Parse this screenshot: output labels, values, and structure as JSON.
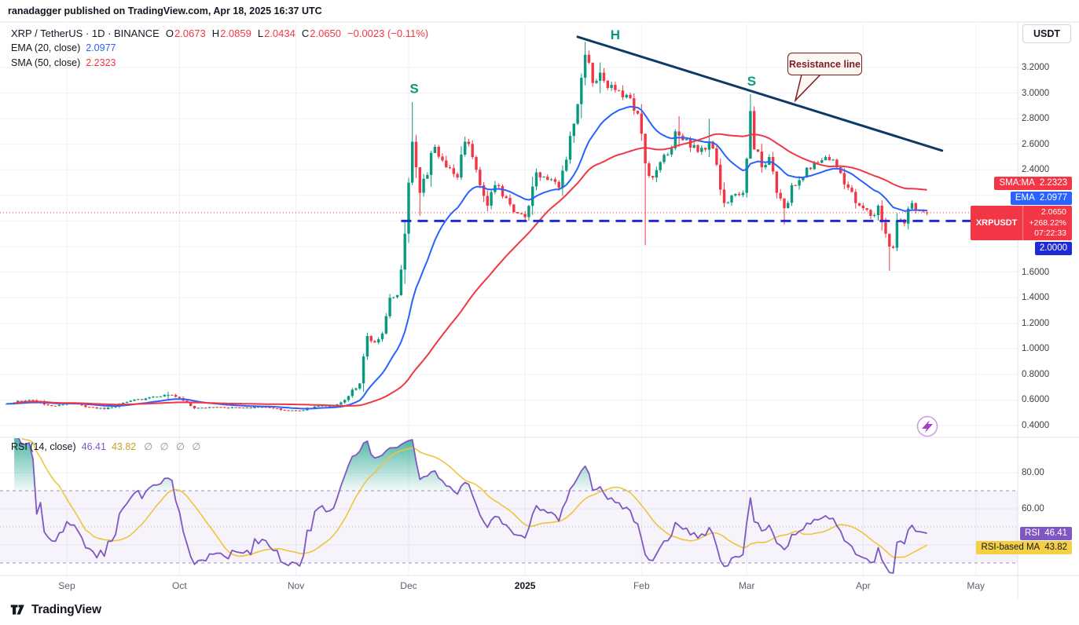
{
  "header": {
    "published": "ranadagger published on TradingView.com, Apr 18, 2025 16:37 UTC"
  },
  "symbol_legend": {
    "title": "XRP / TetherUS · 1D · BINANCE",
    "ohlc": [
      {
        "k": "O",
        "v": "2.0673"
      },
      {
        "k": "H",
        "v": "2.0859"
      },
      {
        "k": "L",
        "v": "2.0434"
      },
      {
        "k": "C",
        "v": "2.0650"
      }
    ],
    "change": "−0.0023 (−0.11%)",
    "ema_label": "EMA (20, close)",
    "ema_value": "2.0977",
    "sma_label": "SMA (50, close)",
    "sma_value": "2.2323"
  },
  "rsi_legend": {
    "label": "RSI (14, close)",
    "rsi_value": "46.41",
    "ma_value": "43.82",
    "empty": "∅ ∅ ∅ ∅"
  },
  "axis": {
    "currency_button": "USDT",
    "price_ticks": [
      3.2,
      3.0,
      2.8,
      2.6,
      2.4,
      1.6,
      1.4,
      1.2,
      1.0,
      0.8,
      0.6,
      0.4
    ],
    "rsi_ticks": [
      80,
      60
    ],
    "months": [
      {
        "label": "Sep",
        "day": 16
      },
      {
        "label": "Oct",
        "day": 46
      },
      {
        "label": "Nov",
        "day": 77
      },
      {
        "label": "Dec",
        "day": 107
      },
      {
        "label": "2025",
        "day": 138,
        "bold": true
      },
      {
        "label": "Feb",
        "day": 169
      },
      {
        "label": "Mar",
        "day": 197
      },
      {
        "label": "Apr",
        "day": 228
      },
      {
        "label": "May",
        "day": 258
      }
    ]
  },
  "badges": {
    "sma": {
      "label": "SMA:MA",
      "value": "2.2323",
      "price": 2.2323
    },
    "ema": {
      "label": "EMA",
      "value": "2.0977",
      "price": 2.0977
    },
    "symbol": {
      "label": "XRPUSDT",
      "price": 2.065,
      "lines": [
        "2.0650",
        "+268.22%",
        "07:22:33"
      ]
    },
    "neckline": {
      "value": "2.0000",
      "price": 2.0
    },
    "rsi": {
      "label": "RSI",
      "value": "46.41",
      "level": 46.41
    },
    "rsi_ma": {
      "label": "RSI-based MA",
      "value": "43.82",
      "level": 43.82
    }
  },
  "footer": {
    "brand": "TradingView"
  },
  "colors": {
    "up": "#089981",
    "down": "#f23645",
    "ema": "#2962ff",
    "sma": "#f23645",
    "rsi": "#7e57c2",
    "rsi_ma": "#f0c43c",
    "neckline": "#1f2bd4",
    "resistance": "#0d3b66",
    "pattern_labels": "#089981",
    "callout": "#7e1a20"
  },
  "chart_data": {
    "type": "candlestick",
    "symbol": "XRP/USDT",
    "exchange": "BINANCE",
    "timeframe": "1D",
    "title": "XRP / TetherUS · 1D · BINANCE",
    "x_axis": {
      "start_date": "2024-08-16",
      "end_date": "2025-04-18",
      "days_shown_after_last": 25
    },
    "y_axis": {
      "visible_range": [
        0.36,
        3.46
      ],
      "tick_step": 0.2,
      "unit": "USDT"
    },
    "close_anchors": [
      [
        0,
        0.57
      ],
      [
        6,
        0.6
      ],
      [
        12,
        0.555
      ],
      [
        16,
        0.575
      ],
      [
        22,
        0.545
      ],
      [
        26,
        0.53
      ],
      [
        32,
        0.585
      ],
      [
        38,
        0.62
      ],
      [
        43,
        0.64
      ],
      [
        46,
        0.615
      ],
      [
        50,
        0.535
      ],
      [
        56,
        0.545
      ],
      [
        62,
        0.54
      ],
      [
        68,
        0.545
      ],
      [
        74,
        0.52
      ],
      [
        78,
        0.515
      ],
      [
        82,
        0.55
      ],
      [
        87,
        0.555
      ],
      [
        90,
        0.6
      ],
      [
        92,
        0.68
      ],
      [
        94,
        0.73
      ],
      [
        96,
        1.1
      ],
      [
        98,
        1.05
      ],
      [
        100,
        1.12
      ],
      [
        102,
        1.4
      ],
      [
        104,
        1.42
      ],
      [
        105,
        1.62
      ],
      [
        106,
        1.9
      ],
      [
        107,
        2.3
      ],
      [
        108,
        2.62
      ],
      [
        109,
        2.42
      ],
      [
        110,
        2.22
      ],
      [
        112,
        2.36
      ],
      [
        114,
        2.58
      ],
      [
        117,
        2.42
      ],
      [
        120,
        2.34
      ],
      [
        122,
        2.62
      ],
      [
        124,
        2.5
      ],
      [
        126,
        2.28
      ],
      [
        128,
        2.12
      ],
      [
        130,
        2.28
      ],
      [
        133,
        2.18
      ],
      [
        136,
        2.06
      ],
      [
        138,
        2.03
      ],
      [
        141,
        2.38
      ],
      [
        144,
        2.32
      ],
      [
        147,
        2.26
      ],
      [
        149,
        2.48
      ],
      [
        151,
        2.76
      ],
      [
        153,
        3.12
      ],
      [
        154,
        3.3
      ],
      [
        156,
        3.08
      ],
      [
        158,
        3.16
      ],
      [
        160,
        3.04
      ],
      [
        163,
        3.02
      ],
      [
        166,
        2.96
      ],
      [
        168,
        2.84
      ],
      [
        170,
        2.45
      ],
      [
        172,
        2.34
      ],
      [
        174,
        2.46
      ],
      [
        176,
        2.52
      ],
      [
        178,
        2.7
      ],
      [
        181,
        2.64
      ],
      [
        184,
        2.54
      ],
      [
        187,
        2.62
      ],
      [
        189,
        2.44
      ],
      [
        191,
        2.14
      ],
      [
        193,
        2.2
      ],
      [
        196,
        2.22
      ],
      [
        198,
        2.86
      ],
      [
        199,
        2.56
      ],
      [
        201,
        2.42
      ],
      [
        203,
        2.5
      ],
      [
        205,
        2.22
      ],
      [
        207,
        2.1
      ],
      [
        209,
        2.28
      ],
      [
        212,
        2.34
      ],
      [
        215,
        2.46
      ],
      [
        218,
        2.5
      ],
      [
        221,
        2.42
      ],
      [
        224,
        2.26
      ],
      [
        226,
        2.14
      ],
      [
        228,
        2.1
      ],
      [
        230,
        2.04
      ],
      [
        232,
        2.12
      ],
      [
        234,
        1.9
      ],
      [
        235,
        1.8
      ],
      [
        236,
        1.79
      ],
      [
        237,
        2.0
      ],
      [
        239,
        1.98
      ],
      [
        241,
        2.14
      ],
      [
        243,
        2.08
      ],
      [
        245,
        2.065
      ]
    ],
    "wick_overrides": [
      [
        43,
        0.665,
        0.605
      ],
      [
        108,
        2.93,
        2.28
      ],
      [
        110,
        2.4,
        2.04
      ],
      [
        154,
        3.4,
        3.06
      ],
      [
        158,
        3.24,
        3.0
      ],
      [
        170,
        2.5,
        1.81
      ],
      [
        179,
        2.82,
        2.58
      ],
      [
        187,
        2.8,
        2.5
      ],
      [
        198,
        2.99,
        2.5
      ],
      [
        207,
        2.16,
        1.97
      ],
      [
        235,
        1.84,
        1.61
      ]
    ],
    "last_candle": {
      "open": 2.0673,
      "high": 2.0859,
      "low": 2.0434,
      "close": 2.065
    },
    "overlays": [
      {
        "id": "ema20",
        "label": "EMA (20, close)",
        "last_value": 2.0977
      },
      {
        "id": "sma50",
        "label": "SMA (50, close)",
        "last_value": 2.2323
      }
    ],
    "rsi_pane": {
      "label": "RSI (14, close)",
      "period": 14,
      "last_rsi": 46.41,
      "last_ma": 43.82,
      "band": [
        30,
        70
      ],
      "mid_level": 50,
      "overbought_fill_above": 70
    },
    "annotations": {
      "labels": [
        {
          "text": "S",
          "day": 108.5,
          "price": 3.0
        },
        {
          "text": "H",
          "day": 162,
          "price": 3.42
        },
        {
          "text": "S",
          "day": 198.3,
          "price": 3.06
        }
      ],
      "callout_text": "Resistance line",
      "resistance_line": {
        "from": {
          "day": 152,
          "price": 3.44
        },
        "to": {
          "day": 249,
          "price": 2.55
        }
      },
      "neckline": {
        "price": 2.0,
        "from_day": 105
      },
      "current_price": 2.065
    }
  }
}
